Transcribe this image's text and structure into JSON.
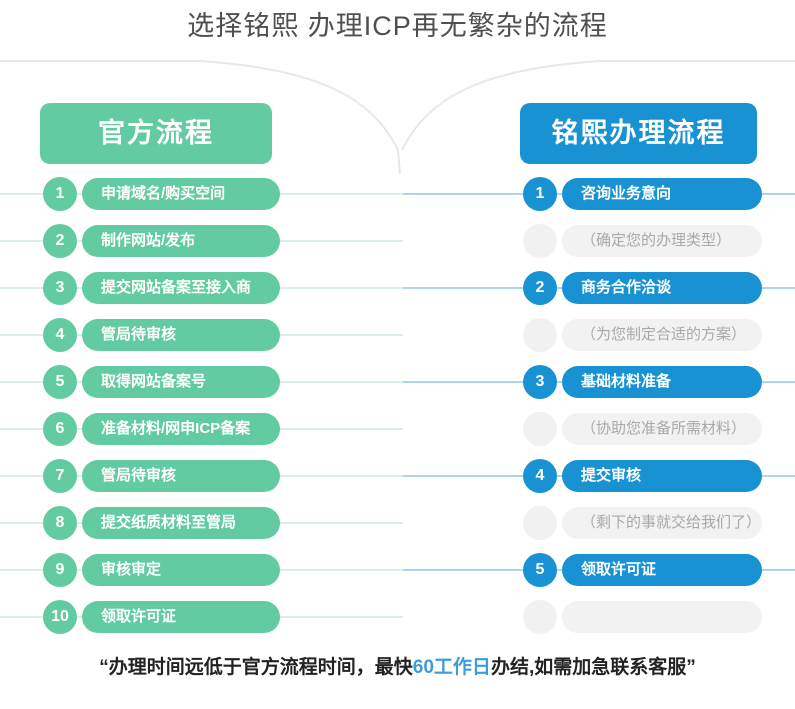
{
  "title": "选择铭熙 办理ICP再无繁杂的流程",
  "left": {
    "header": "官方流程",
    "accent_color": "#63cba1",
    "steps": [
      {
        "num": "1",
        "label": "申请域名/购买空间"
      },
      {
        "num": "2",
        "label": "制作网站/发布"
      },
      {
        "num": "3",
        "label": "提交网站备案至接入商"
      },
      {
        "num": "4",
        "label": "管局待审核"
      },
      {
        "num": "5",
        "label": "取得网站备案号"
      },
      {
        "num": "6",
        "label": "准备材料/网申ICP备案"
      },
      {
        "num": "7",
        "label": "管局待审核"
      },
      {
        "num": "8",
        "label": "提交纸质材料至管局"
      },
      {
        "num": "9",
        "label": "审核审定"
      },
      {
        "num": "10",
        "label": "领取许可证"
      }
    ]
  },
  "right": {
    "header": "铭熙办理流程",
    "accent_color": "#1892d2",
    "steps": [
      {
        "num": "1",
        "label": "咨询业务意向",
        "type": "step"
      },
      {
        "num": "",
        "label": "（确定您的办理类型）",
        "type": "note"
      },
      {
        "num": "2",
        "label": "商务合作洽谈",
        "type": "step"
      },
      {
        "num": "",
        "label": "（为您制定合适的方案）",
        "type": "note"
      },
      {
        "num": "3",
        "label": "基础材料准备",
        "type": "step"
      },
      {
        "num": "",
        "label": "（协助您准备所需材料）",
        "type": "note"
      },
      {
        "num": "4",
        "label": "提交审核",
        "type": "step"
      },
      {
        "num": "",
        "label": "（剩下的事就交给我们了）",
        "type": "note"
      },
      {
        "num": "5",
        "label": "领取许可证",
        "type": "step"
      },
      {
        "num": "",
        "label": "",
        "type": "note"
      }
    ]
  },
  "footer": {
    "prefix": "“办理时间远低于官方流程时间，最快",
    "highlight": "60工作日",
    "suffix": "办结,如需加急联系客服”",
    "highlight_color": "#3e9cd8"
  }
}
